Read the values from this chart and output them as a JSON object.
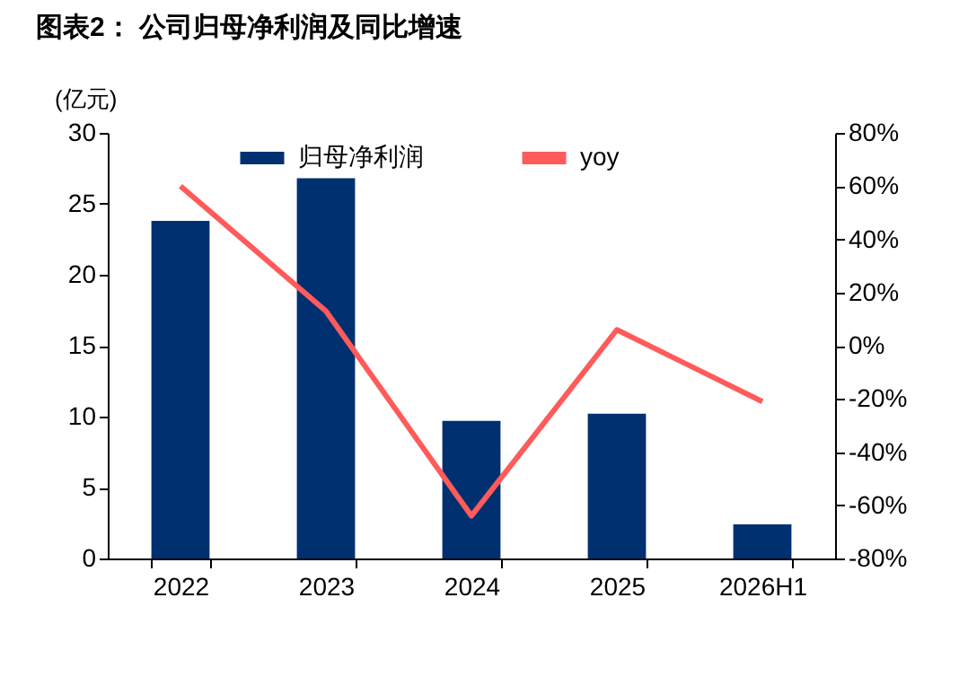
{
  "chart_data": {
    "type": "bar",
    "title": "图表2：  公司归母净利润及同比增速",
    "ylabel": "(亿元)",
    "categories": [
      "2022",
      "2023",
      "2024",
      "2025",
      "2026H1"
    ],
    "series": [
      {
        "name": "归母净利润",
        "color": "#003070",
        "values": [
          23.8,
          26.8,
          9.7,
          10.2,
          2.4
        ]
      },
      {
        "name": "yoy",
        "type": "line",
        "axis": "y2",
        "color": "#ff5b5b",
        "values": [
          60,
          13,
          -64,
          6,
          -21
        ]
      }
    ],
    "ylim": [
      0,
      30
    ],
    "yticks": [
      0,
      5,
      10,
      15,
      20,
      25,
      30
    ],
    "y2lim": [
      -80,
      80
    ],
    "y2ticks": [
      {
        "value": -80,
        "label": "-80%"
      },
      {
        "value": -60,
        "label": "-60%"
      },
      {
        "value": -40,
        "label": "-40%"
      },
      {
        "value": -20,
        "label": "-20%"
      },
      {
        "value": 0,
        "label": "0%"
      },
      {
        "value": 20,
        "label": "20%"
      },
      {
        "value": 40,
        "label": "40%"
      },
      {
        "value": 60,
        "label": "60%"
      },
      {
        "value": 80,
        "label": "80%"
      }
    ],
    "legend": "top",
    "grid": false,
    "marker": "none"
  }
}
